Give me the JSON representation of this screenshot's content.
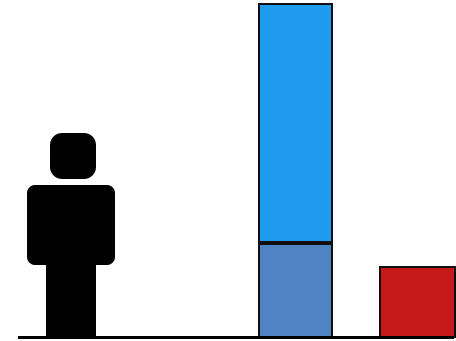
{
  "colors": {
    "figure": "#000000",
    "baseline": "#000000",
    "tower_upper": "#1e9bef",
    "tower_lower": "#4e84c1",
    "small_block": "#c5191a",
    "outline": "#0f0f0f"
  },
  "icons": {
    "person": "person-icon"
  }
}
